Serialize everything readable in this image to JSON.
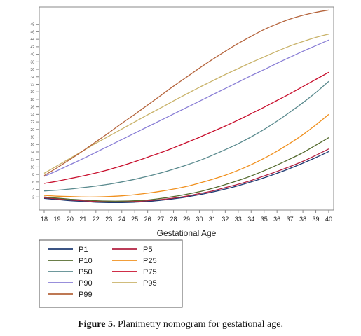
{
  "caption": {
    "label": "Figure 5.",
    "text": "Planimetry nomogram for gestational age."
  },
  "chart_data": {
    "type": "line",
    "title": "",
    "xlabel": "Gestational Age",
    "ylabel": "",
    "x": [
      18,
      19,
      20,
      21,
      22,
      23,
      24,
      25,
      26,
      27,
      28,
      29,
      30,
      31,
      32,
      33,
      34,
      35,
      36,
      37,
      38,
      39,
      40
    ],
    "xlim": [
      18,
      40
    ],
    "ylim": [
      0,
      50
    ],
    "y_ticks": [
      2,
      4,
      6,
      8,
      10,
      12,
      14,
      16,
      18,
      20,
      22,
      24,
      26,
      28,
      30,
      32,
      34,
      36,
      38,
      40,
      42,
      44,
      46,
      48
    ],
    "grid": false,
    "legend_position": "bottom-left",
    "series": [
      {
        "name": "P1",
        "color": "#1f3b73",
        "values": [
          1.6,
          1.3,
          1.0,
          0.8,
          0.6,
          0.5,
          0.5,
          0.6,
          0.8,
          1.1,
          1.5,
          2.0,
          2.6,
          3.3,
          4.1,
          5.0,
          6.0,
          7.1,
          8.3,
          9.6,
          11.0,
          12.5,
          14.1
        ]
      },
      {
        "name": "P5",
        "color": "#b22040",
        "values": [
          1.8,
          1.5,
          1.2,
          1.0,
          0.8,
          0.7,
          0.7,
          0.8,
          1.0,
          1.3,
          1.7,
          2.2,
          2.9,
          3.6,
          4.5,
          5.4,
          6.4,
          7.6,
          8.8,
          10.1,
          11.5,
          13.1,
          14.8
        ]
      },
      {
        "name": "P10",
        "color": "#556b2f",
        "values": [
          2.0,
          1.7,
          1.4,
          1.2,
          1.0,
          0.9,
          0.9,
          1.0,
          1.2,
          1.6,
          2.1,
          2.7,
          3.4,
          4.3,
          5.3,
          6.4,
          7.6,
          9.0,
          10.5,
          12.1,
          13.8,
          15.8,
          17.8
        ]
      },
      {
        "name": "P25",
        "color": "#f0901e",
        "values": [
          2.4,
          2.2,
          2.1,
          2.0,
          2.0,
          2.1,
          2.3,
          2.6,
          3.0,
          3.5,
          4.1,
          4.8,
          5.7,
          6.7,
          7.8,
          9.1,
          10.6,
          12.3,
          14.2,
          16.3,
          18.6,
          21.2,
          24.0
        ]
      },
      {
        "name": "P50",
        "color": "#5a8a8e",
        "values": [
          3.6,
          3.8,
          4.1,
          4.5,
          4.9,
          5.4,
          6.0,
          6.7,
          7.5,
          8.4,
          9.4,
          10.5,
          11.7,
          13.1,
          14.6,
          16.2,
          18.0,
          20.0,
          22.2,
          24.6,
          27.1,
          29.8,
          32.8
        ]
      },
      {
        "name": "P75",
        "color": "#c8102e",
        "values": [
          5.6,
          6.2,
          6.9,
          7.6,
          8.4,
          9.3,
          10.3,
          11.4,
          12.6,
          13.8,
          15.1,
          16.5,
          17.9,
          19.4,
          20.9,
          22.5,
          24.2,
          25.9,
          27.7,
          29.5,
          31.4,
          33.3,
          35.2
        ]
      },
      {
        "name": "P90",
        "color": "#8a7fd6",
        "values": [
          7.5,
          9.0,
          10.6,
          12.2,
          13.9,
          15.6,
          17.3,
          19.0,
          20.7,
          22.4,
          24.1,
          25.8,
          27.5,
          29.2,
          30.9,
          32.6,
          34.3,
          35.9,
          37.6,
          39.2,
          40.8,
          42.3,
          43.8
        ]
      },
      {
        "name": "P95",
        "color": "#c9b36a",
        "values": [
          8.3,
          10.3,
          12.3,
          14.3,
          16.3,
          18.2,
          20.1,
          22.0,
          23.9,
          25.7,
          27.6,
          29.4,
          31.2,
          32.9,
          34.6,
          36.2,
          37.8,
          39.3,
          40.8,
          42.2,
          43.4,
          44.5,
          45.4
        ]
      },
      {
        "name": "P99",
        "color": "#b5643c",
        "values": [
          7.7,
          9.8,
          12.0,
          14.3,
          16.7,
          19.1,
          21.6,
          24.0,
          26.5,
          29.0,
          31.5,
          33.9,
          36.3,
          38.6,
          40.8,
          42.9,
          44.8,
          46.6,
          48.1,
          49.4,
          50.4,
          51.2,
          51.8
        ]
      }
    ]
  }
}
